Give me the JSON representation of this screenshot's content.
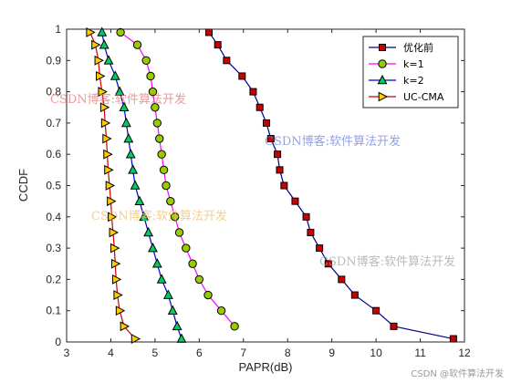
{
  "chart_data": {
    "type": "line",
    "xlabel": "PAPR(dB)",
    "ylabel": "CCDF",
    "xlim": [
      3,
      12
    ],
    "ylim": [
      0,
      1
    ],
    "xticks": [
      3,
      4,
      5,
      6,
      7,
      8,
      9,
      10,
      11,
      12
    ],
    "yticks": [
      0,
      0.1,
      0.2,
      0.3,
      0.4,
      0.5,
      0.6,
      0.7,
      0.8,
      0.9,
      1
    ],
    "grid": false,
    "legend_position": "top-right",
    "series": [
      {
        "name": "优化前",
        "color": "#00008b",
        "marker": "square",
        "marker_color": "#cc0000",
        "x": [
          6.22,
          6.42,
          6.62,
          6.97,
          7.22,
          7.37,
          7.52,
          7.62,
          7.77,
          7.82,
          7.92,
          8.17,
          8.42,
          8.52,
          8.72,
          8.92,
          9.22,
          9.52,
          10.0,
          10.4,
          11.75
        ],
        "y": [
          0.99,
          0.95,
          0.9,
          0.85,
          0.8,
          0.75,
          0.7,
          0.65,
          0.6,
          0.55,
          0.5,
          0.45,
          0.4,
          0.35,
          0.3,
          0.25,
          0.2,
          0.15,
          0.1,
          0.05,
          0.01
        ]
      },
      {
        "name": "k=1",
        "color": "#ff00ff",
        "marker": "circle",
        "marker_color": "#99cc00",
        "x": [
          4.22,
          4.6,
          4.8,
          4.9,
          4.95,
          5.0,
          5.05,
          5.1,
          5.15,
          5.2,
          5.25,
          5.35,
          5.45,
          5.55,
          5.7,
          5.85,
          6.0,
          6.2,
          6.5,
          6.8
        ],
        "y": [
          0.99,
          0.95,
          0.9,
          0.85,
          0.8,
          0.75,
          0.7,
          0.65,
          0.6,
          0.55,
          0.5,
          0.45,
          0.4,
          0.35,
          0.3,
          0.25,
          0.2,
          0.15,
          0.1,
          0.05
        ]
      },
      {
        "name": "k=2",
        "color": "#0000cd",
        "marker": "triangle",
        "marker_color": "#00cc66",
        "x": [
          3.8,
          3.85,
          3.95,
          4.1,
          4.2,
          4.3,
          4.35,
          4.4,
          4.45,
          4.5,
          4.55,
          4.65,
          4.75,
          4.85,
          4.95,
          5.05,
          5.15,
          5.3,
          5.4,
          5.5,
          5.6
        ],
        "y": [
          0.99,
          0.95,
          0.9,
          0.85,
          0.8,
          0.75,
          0.7,
          0.65,
          0.6,
          0.55,
          0.5,
          0.45,
          0.4,
          0.35,
          0.3,
          0.25,
          0.2,
          0.15,
          0.1,
          0.05,
          0.01
        ]
      },
      {
        "name": "UC-CMA",
        "color": "#cc0000",
        "marker": "triangle-right",
        "marker_color": "#ffcc00",
        "x": [
          3.53,
          3.65,
          3.72,
          3.75,
          3.8,
          3.85,
          3.87,
          3.9,
          3.92,
          3.94,
          3.97,
          4.0,
          4.02,
          4.05,
          4.08,
          4.1,
          4.12,
          4.15,
          4.2,
          4.3,
          4.55
        ],
        "y": [
          0.99,
          0.95,
          0.9,
          0.85,
          0.8,
          0.75,
          0.7,
          0.65,
          0.6,
          0.55,
          0.5,
          0.45,
          0.4,
          0.35,
          0.3,
          0.25,
          0.2,
          0.15,
          0.1,
          0.05,
          0.01
        ]
      }
    ]
  },
  "watermarks": [
    {
      "text": "CSDN博客:软件算法开发",
      "color": "rgba(225,120,120,0.75)"
    },
    {
      "text": "CSDN博客:软件算法开发",
      "color": "rgba(110,130,220,0.75)"
    },
    {
      "text": "CSDN博客:软件算法开发",
      "color": "rgba(240,190,110,0.75)"
    },
    {
      "text": "CSDN博客:软件算法开发",
      "color": "rgba(170,170,170,0.8)"
    }
  ],
  "credit": "CSDN @软件算法开发"
}
